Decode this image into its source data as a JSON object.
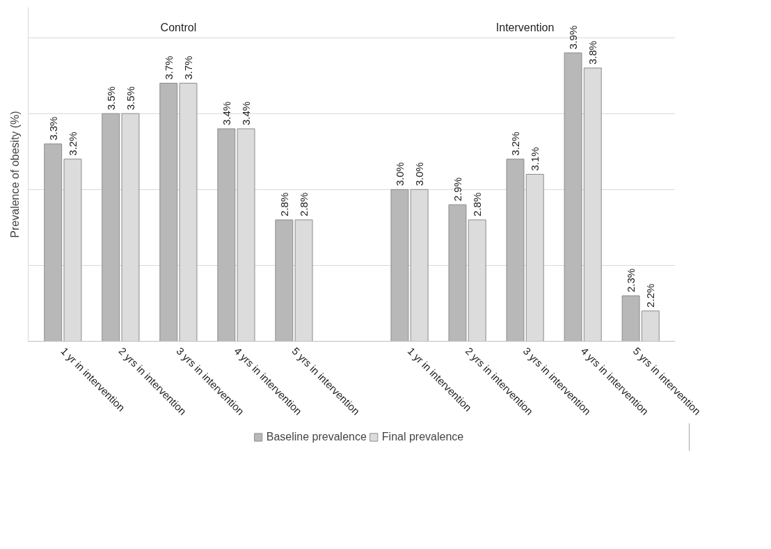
{
  "chart_data": {
    "type": "bar",
    "ylabel": "Prevalence of obesity (%)",
    "categories": [
      "1 yr in intervention",
      "2 yrs in intervention",
      "3 yrs in intervention",
      "4 yrs in intervention",
      "5 yrs in intervention",
      null,
      "1 yr in intervention",
      "2 yrs in intervention",
      "3 yrs in intervention",
      "4 yrs in intervention",
      "5 yrs in intervention"
    ],
    "series": [
      {
        "name": "Baseline prevalence",
        "color": "#b8b8b8",
        "values": [
          3.3,
          3.5,
          3.7,
          3.4,
          2.8,
          null,
          3.0,
          2.9,
          3.2,
          3.9,
          2.3
        ],
        "value_labels": [
          "3.3%",
          "3.5%",
          "3.7%",
          "3.4%",
          "2.8%",
          null,
          "3.0%",
          "2.9%",
          "3.2%",
          "3.9%",
          "2.3%"
        ]
      },
      {
        "name": "Final prevalence",
        "color": "#dcdcdc",
        "values": [
          3.2,
          3.5,
          3.7,
          3.4,
          2.8,
          null,
          3.0,
          2.8,
          3.1,
          3.8,
          2.2
        ],
        "value_labels": [
          "3.2%",
          "3.5%",
          "3.7%",
          "3.4%",
          "2.8%",
          null,
          "3.0%",
          "2.8%",
          "3.1%",
          "3.8%",
          "2.2%"
        ]
      }
    ],
    "annotations": [
      "Control",
      "Intervention"
    ],
    "yticks": [
      {
        "value": 2.0,
        "label": null
      },
      {
        "value": 2.5,
        "label": null
      },
      {
        "value": 3.0,
        "label": null
      },
      {
        "value": 3.5,
        "label": null
      },
      {
        "value": 4.0,
        "label": null
      }
    ],
    "ylim": [
      2.0,
      4.2
    ],
    "tick_labels": "x",
    "grid": "y",
    "legend": "bottom"
  }
}
